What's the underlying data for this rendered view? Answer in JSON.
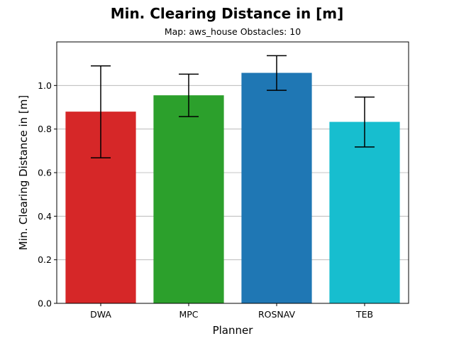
{
  "chart_data": {
    "type": "bar",
    "title": "Min. Clearing Distance in [m]",
    "subtitle": "Map: aws_house Obstacles: 10",
    "xlabel": "Planner",
    "ylabel": "Min. Clearing Distance in [m]",
    "categories": [
      "DWA",
      "MPC",
      "ROSNAV",
      "TEB"
    ],
    "values": [
      0.88,
      0.955,
      1.058,
      0.833
    ],
    "error_low": [
      0.668,
      0.857,
      0.978,
      0.718
    ],
    "error_high": [
      1.09,
      1.052,
      1.137,
      0.947
    ],
    "colors": [
      "#d62728",
      "#2ca02c",
      "#1f77b4",
      "#17becf"
    ],
    "ylim": [
      0,
      1.2
    ],
    "yticks": [
      "0.0",
      "0.2",
      "0.4",
      "0.6",
      "0.8",
      "1.0"
    ],
    "grid": "horizontal"
  }
}
